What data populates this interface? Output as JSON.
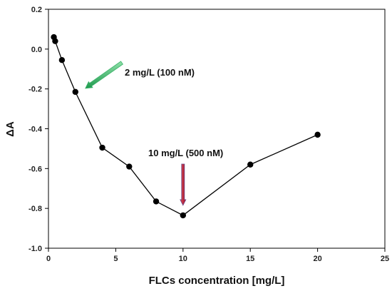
{
  "chart_data": {
    "type": "line",
    "xlabel": "FLCs concentration [mg/L]",
    "ylabel": "ΔA",
    "xlim": [
      0,
      25
    ],
    "ylim": [
      -1.0,
      0.2
    ],
    "xticks": [
      0,
      5,
      10,
      15,
      20,
      25
    ],
    "yticks": [
      -1.0,
      -0.8,
      -0.6,
      -0.4,
      -0.2,
      0.0,
      0.2
    ],
    "xtick_labels": [
      "0",
      "5",
      "10",
      "15",
      "20",
      "25"
    ],
    "ytick_labels": [
      "-1.0",
      "-0.8",
      "-0.6",
      "-0.4",
      "-0.2",
      "0.0",
      "0.2"
    ],
    "grid": false,
    "series": [
      {
        "x": [
          0.4,
          0.5,
          1,
          2,
          4,
          6,
          8,
          10,
          15,
          20
        ],
        "y": [
          0.06,
          0.04,
          -0.055,
          -0.215,
          -0.495,
          -0.59,
          -0.765,
          -0.835,
          -0.58,
          -0.43
        ],
        "color": "#000000"
      }
    ],
    "annotations": [
      {
        "text": "2 mg/L (100 nM)",
        "target_x": 2,
        "target_y": -0.215,
        "arrow_color": "#3bb36a"
      },
      {
        "text": "10 mg/L (500 nM)",
        "target_x": 10,
        "target_y": -0.835,
        "arrow_color": "#d0203a"
      }
    ]
  }
}
